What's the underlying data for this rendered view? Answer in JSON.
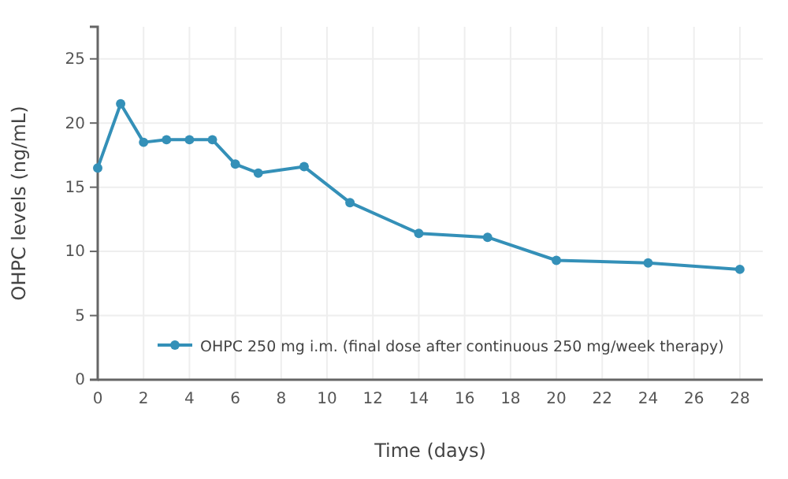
{
  "chart_data": {
    "type": "line",
    "xlabel": "Time (days)",
    "ylabel": "OHPC levels (ng/mL)",
    "x": [
      0,
      1,
      2,
      3,
      4,
      5,
      6,
      7,
      9,
      11,
      14,
      17,
      20,
      24,
      28
    ],
    "series": [
      {
        "name": "OHPC 250 mg i.m. (final dose after continuous 250 mg/week therapy)",
        "color": "#3490b8",
        "values": [
          16.5,
          21.5,
          18.5,
          18.7,
          18.7,
          18.7,
          16.8,
          16.1,
          16.6,
          13.8,
          11.4,
          11.1,
          9.3,
          9.1,
          8.6
        ]
      }
    ],
    "xlim": [
      0,
      29
    ],
    "xticks": [
      0,
      2,
      4,
      6,
      8,
      10,
      12,
      14,
      16,
      18,
      20,
      22,
      24,
      26,
      28
    ],
    "ylim": [
      0,
      27.5
    ],
    "yticks": [
      0,
      5,
      10,
      15,
      20,
      25
    ],
    "grid": true,
    "legend": "bottom left",
    "marker": "circle",
    "line_style": "solid"
  }
}
